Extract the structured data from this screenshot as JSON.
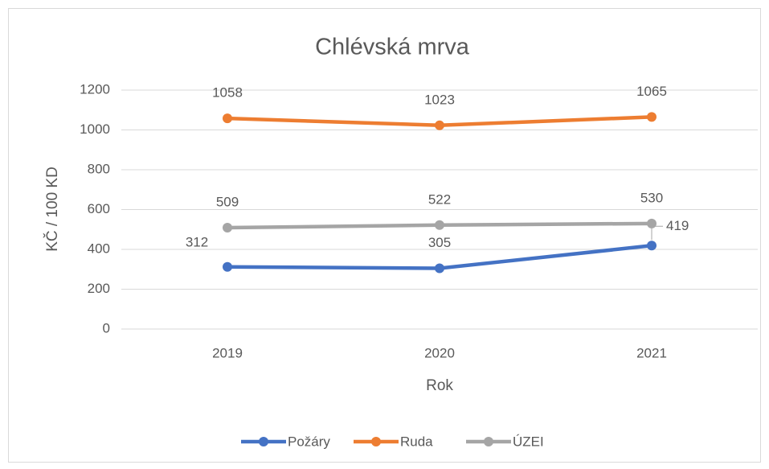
{
  "chart_data": {
    "type": "line",
    "title": "Chlévská mrva",
    "x_label": "Rok",
    "y_label": "KČ / 100 KD",
    "categories": [
      "2019",
      "2020",
      "2021"
    ],
    "series": [
      {
        "name": "Požáry",
        "color": "#4472c4",
        "values": [
          312,
          305,
          419
        ]
      },
      {
        "name": "Ruda",
        "color": "#ed7d31",
        "values": [
          1058,
          1023,
          1065
        ]
      },
      {
        "name": "ÚZEI",
        "color": "#a5a5a5",
        "values": [
          509,
          522,
          530
        ]
      }
    ],
    "ylim": [
      0,
      1200
    ],
    "yticks": [
      0,
      200,
      400,
      600,
      800,
      1000,
      1200
    ],
    "grid": true,
    "legend": "bottom",
    "data_labels": true
  }
}
